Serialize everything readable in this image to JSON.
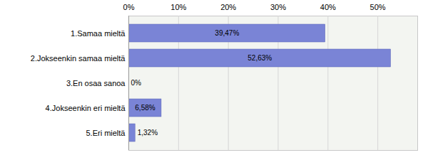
{
  "chart_data": {
    "type": "bar",
    "orientation": "horizontal",
    "categories": [
      "1.Samaa mieltä",
      "2.Jokseenkin samaa mieltä",
      "3.En osaa sanoa",
      "4.Jokseenkin eri mieltä",
      "5.Eri mieltä"
    ],
    "values": [
      39.47,
      52.63,
      0,
      6.58,
      1.32
    ],
    "value_labels": [
      "39,47%",
      "52,63%",
      "0%",
      "6,58%",
      "1,32%"
    ],
    "data_labels": true,
    "color": "#7a84d6",
    "xlim": [
      0,
      58
    ],
    "xticks": [
      {
        "value": 0,
        "label": "0%"
      },
      {
        "value": 10,
        "label": "10%"
      },
      {
        "value": 20,
        "label": "20%"
      },
      {
        "value": 30,
        "label": "30%"
      },
      {
        "value": 40,
        "label": "40%"
      },
      {
        "value": 50,
        "label": "50%"
      }
    ],
    "grid": true
  }
}
